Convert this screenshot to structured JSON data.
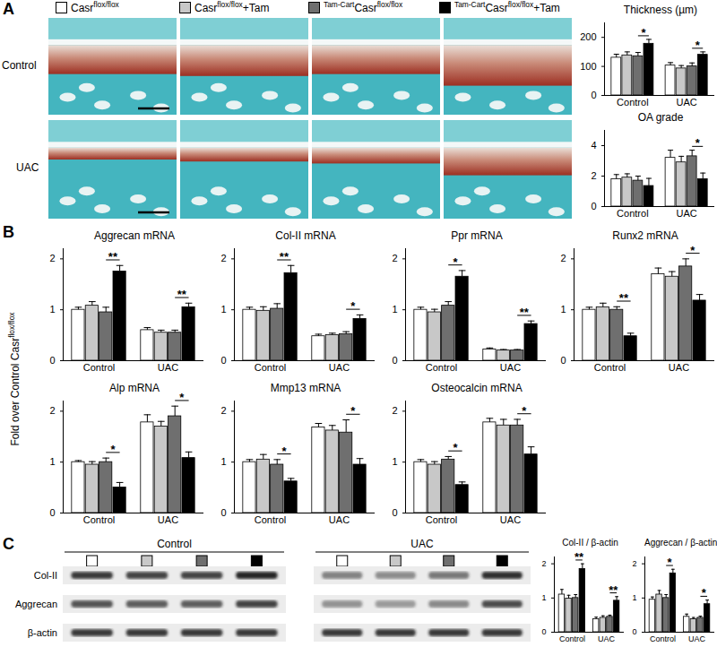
{
  "panel_labels": [
    "A",
    "B",
    "C"
  ],
  "legend": [
    {
      "color": "#ffffff",
      "parts": [
        {
          "text": "Casr"
        },
        {
          "text": "flox/flox",
          "sup": true
        }
      ]
    },
    {
      "color": "#c8c8c8",
      "parts": [
        {
          "text": "Casr"
        },
        {
          "text": "flox/flox",
          "sup": true
        },
        {
          "text": "+Tam"
        }
      ]
    },
    {
      "color": "#6f6f6f",
      "parts": [
        {
          "text": "Tam-Cart",
          "sup": true
        },
        {
          "text": "Casr"
        },
        {
          "text": "flox/flox",
          "sup": true
        }
      ]
    },
    {
      "color": "#000000",
      "parts": [
        {
          "text": "Tam-Cart",
          "sup": true
        },
        {
          "text": "Casr"
        },
        {
          "text": "flox/flox",
          "sup": true
        },
        {
          "text": "+Tam"
        }
      ]
    }
  ],
  "histology": {
    "rows": [
      "Control",
      "UAC"
    ]
  },
  "panel_b_ylabel": [
    {
      "text": "Fold over Control Casr"
    },
    {
      "text": "flox/flox",
      "sup": true
    }
  ],
  "blots": {
    "groups": [
      "Control",
      "UAC"
    ],
    "rows": [
      "Col-II",
      "Aggrecan",
      "β-actin"
    ]
  },
  "chart_data": [
    {
      "type": "bar",
      "title": "Thickness (µm)",
      "categories": [
        "Control",
        "UAC"
      ],
      "series": [
        {
          "name": "Casrflox/flox",
          "color": "#ffffff",
          "values": [
            130,
            103
          ],
          "errors": [
            12,
            10
          ]
        },
        {
          "name": "Casrflox/flox+Tam",
          "color": "#c8c8c8",
          "values": [
            138,
            93
          ],
          "errors": [
            12,
            10
          ]
        },
        {
          "name": "Tam-CartCasrflox/flox",
          "color": "#6f6f6f",
          "values": [
            135,
            100
          ],
          "errors": [
            13,
            12
          ]
        },
        {
          "name": "Tam-CartCasrflox/flox+Tam",
          "color": "#000000",
          "values": [
            178,
            140
          ],
          "errors": [
            15,
            10
          ]
        }
      ],
      "ylim": [
        0,
        250
      ],
      "yticks": [
        0,
        100,
        200
      ],
      "significance": [
        {
          "category": "Control",
          "label": "*"
        },
        {
          "category": "UAC",
          "label": "*"
        }
      ]
    },
    {
      "type": "bar",
      "title": "OA grade",
      "categories": [
        "Control",
        "UAC"
      ],
      "series": [
        {
          "name": "Casrflox/flox",
          "color": "#ffffff",
          "values": [
            1.8,
            3.2
          ],
          "errors": [
            0.3,
            0.5
          ]
        },
        {
          "name": "Casrflox/flox+Tam",
          "color": "#c8c8c8",
          "values": [
            1.9,
            2.9
          ],
          "errors": [
            0.25,
            0.4
          ]
        },
        {
          "name": "Tam-CartCasrflox/flox",
          "color": "#6f6f6f",
          "values": [
            1.7,
            3.3
          ],
          "errors": [
            0.3,
            0.4
          ]
        },
        {
          "name": "Tam-CartCasrflox/flox+Tam",
          "color": "#000000",
          "values": [
            1.35,
            1.8
          ],
          "errors": [
            0.5,
            0.4
          ]
        }
      ],
      "ylim": [
        0,
        5
      ],
      "yticks": [
        0,
        2,
        4
      ],
      "significance": [
        {
          "category": "UAC",
          "label": "*"
        }
      ]
    },
    {
      "type": "bar",
      "title": "Aggrecan mRNA",
      "categories": [
        "Control",
        "UAC"
      ],
      "series": [
        {
          "name": "Casrflox/flox",
          "color": "#ffffff",
          "values": [
            1.0,
            0.6
          ],
          "errors": [
            0.05,
            0.05
          ]
        },
        {
          "name": "Casrflox/flox+Tam",
          "color": "#c8c8c8",
          "values": [
            1.08,
            0.55
          ],
          "errors": [
            0.08,
            0.05
          ]
        },
        {
          "name": "Tam-CartCasrflox/flox",
          "color": "#6f6f6f",
          "values": [
            0.95,
            0.55
          ],
          "errors": [
            0.1,
            0.05
          ]
        },
        {
          "name": "Tam-CartCasrflox/flox+Tam",
          "color": "#000000",
          "values": [
            1.75,
            1.05
          ],
          "errors": [
            0.12,
            0.08
          ]
        }
      ],
      "ylim": [
        0,
        2.2
      ],
      "yticks": [
        0,
        1,
        2
      ],
      "significance": [
        {
          "category": "Control",
          "label": "**"
        },
        {
          "category": "UAC",
          "label": "**"
        }
      ]
    },
    {
      "type": "bar",
      "title": "Col-II mRNA",
      "categories": [
        "Control",
        "UAC"
      ],
      "series": [
        {
          "name": "Casrflox/flox",
          "color": "#ffffff",
          "values": [
            1.0,
            0.48
          ],
          "errors": [
            0.05,
            0.04
          ]
        },
        {
          "name": "Casrflox/flox+Tam",
          "color": "#c8c8c8",
          "values": [
            0.98,
            0.5
          ],
          "errors": [
            0.08,
            0.04
          ]
        },
        {
          "name": "Tam-CartCasrflox/flox",
          "color": "#6f6f6f",
          "values": [
            1.02,
            0.52
          ],
          "errors": [
            0.1,
            0.05
          ]
        },
        {
          "name": "Tam-CartCasrflox/flox+Tam",
          "color": "#000000",
          "values": [
            1.72,
            0.82
          ],
          "errors": [
            0.15,
            0.08
          ]
        }
      ],
      "ylim": [
        0,
        2.2
      ],
      "yticks": [
        0,
        1,
        2
      ],
      "significance": [
        {
          "category": "Control",
          "label": "**"
        },
        {
          "category": "UAC",
          "label": "*"
        }
      ]
    },
    {
      "type": "bar",
      "title": "Ppr mRNA",
      "categories": [
        "Control",
        "UAC"
      ],
      "series": [
        {
          "name": "Casrflox/flox",
          "color": "#ffffff",
          "values": [
            1.0,
            0.22
          ],
          "errors": [
            0.05,
            0.03
          ]
        },
        {
          "name": "Casrflox/flox+Tam",
          "color": "#c8c8c8",
          "values": [
            0.95,
            0.2
          ],
          "errors": [
            0.06,
            0.02
          ]
        },
        {
          "name": "Tam-CartCasrflox/flox",
          "color": "#6f6f6f",
          "values": [
            1.08,
            0.2
          ],
          "errors": [
            0.08,
            0.02
          ]
        },
        {
          "name": "Tam-CartCasrflox/flox+Tam",
          "color": "#000000",
          "values": [
            1.65,
            0.72
          ],
          "errors": [
            0.12,
            0.06
          ]
        }
      ],
      "ylim": [
        0,
        2.2
      ],
      "yticks": [
        0,
        1,
        2
      ],
      "significance": [
        {
          "category": "Control",
          "label": "*"
        },
        {
          "category": "UAC",
          "label": "**"
        }
      ]
    },
    {
      "type": "bar",
      "title": "Runx2 mRNA",
      "categories": [
        "Control",
        "UAC"
      ],
      "series": [
        {
          "name": "Casrflox/flox",
          "color": "#ffffff",
          "values": [
            1.0,
            1.7
          ],
          "errors": [
            0.05,
            0.12
          ]
        },
        {
          "name": "Casrflox/flox+Tam",
          "color": "#c8c8c8",
          "values": [
            1.05,
            1.65
          ],
          "errors": [
            0.08,
            0.1
          ]
        },
        {
          "name": "Tam-CartCasrflox/flox",
          "color": "#6f6f6f",
          "values": [
            1.0,
            1.85
          ],
          "errors": [
            0.06,
            0.15
          ]
        },
        {
          "name": "Tam-CartCasrflox/flox+Tam",
          "color": "#000000",
          "values": [
            0.48,
            1.18
          ],
          "errors": [
            0.06,
            0.12
          ]
        }
      ],
      "ylim": [
        0,
        2.2
      ],
      "yticks": [
        0,
        1,
        2
      ],
      "significance": [
        {
          "category": "Control",
          "label": "**"
        },
        {
          "category": "UAC",
          "label": "*"
        }
      ]
    },
    {
      "type": "bar",
      "title": "Alp mRNA",
      "categories": [
        "Control",
        "UAC"
      ],
      "series": [
        {
          "name": "Casrflox/flox",
          "color": "#ffffff",
          "values": [
            1.0,
            1.78
          ],
          "errors": [
            0.03,
            0.15
          ]
        },
        {
          "name": "Casrflox/flox+Tam",
          "color": "#c8c8c8",
          "values": [
            0.95,
            1.7
          ],
          "errors": [
            0.06,
            0.1
          ]
        },
        {
          "name": "Tam-CartCasrflox/flox",
          "color": "#6f6f6f",
          "values": [
            1.0,
            1.9
          ],
          "errors": [
            0.08,
            0.2
          ]
        },
        {
          "name": "Tam-CartCasrflox/flox+Tam",
          "color": "#000000",
          "values": [
            0.5,
            1.08
          ],
          "errors": [
            0.1,
            0.12
          ]
        }
      ],
      "ylim": [
        0,
        2.2
      ],
      "yticks": [
        0,
        1,
        2
      ],
      "significance": [
        {
          "category": "Control",
          "label": "*"
        },
        {
          "category": "UAC",
          "label": "*"
        }
      ]
    },
    {
      "type": "bar",
      "title": "Mmp13 mRNA",
      "categories": [
        "Control",
        "UAC"
      ],
      "series": [
        {
          "name": "Casrflox/flox",
          "color": "#ffffff",
          "values": [
            1.0,
            1.68
          ],
          "errors": [
            0.05,
            0.08
          ]
        },
        {
          "name": "Casrflox/flox+Tam",
          "color": "#c8c8c8",
          "values": [
            1.05,
            1.62
          ],
          "errors": [
            0.1,
            0.1
          ]
        },
        {
          "name": "Tam-CartCasrflox/flox",
          "color": "#6f6f6f",
          "values": [
            0.95,
            1.58
          ],
          "errors": [
            0.1,
            0.25
          ]
        },
        {
          "name": "Tam-CartCasrflox/flox+Tam",
          "color": "#000000",
          "values": [
            0.62,
            0.95
          ],
          "errors": [
            0.06,
            0.12
          ]
        }
      ],
      "ylim": [
        0,
        2.2
      ],
      "yticks": [
        0,
        1,
        2
      ],
      "significance": [
        {
          "category": "Control",
          "label": "*"
        },
        {
          "category": "UAC",
          "label": "*"
        }
      ]
    },
    {
      "type": "bar",
      "title": "Osteocalcin mRNA",
      "categories": [
        "Control",
        "UAC"
      ],
      "series": [
        {
          "name": "Casrflox/flox",
          "color": "#ffffff",
          "values": [
            1.0,
            1.78
          ],
          "errors": [
            0.05,
            0.08
          ]
        },
        {
          "name": "Casrflox/flox+Tam",
          "color": "#c8c8c8",
          "values": [
            0.95,
            1.72
          ],
          "errors": [
            0.06,
            0.12
          ]
        },
        {
          "name": "Tam-CartCasrflox/flox",
          "color": "#6f6f6f",
          "values": [
            1.05,
            1.72
          ],
          "errors": [
            0.06,
            0.12
          ]
        },
        {
          "name": "Tam-CartCasrflox/flox+Tam",
          "color": "#000000",
          "values": [
            0.55,
            1.15
          ],
          "errors": [
            0.06,
            0.15
          ]
        }
      ],
      "ylim": [
        0,
        2.2
      ],
      "yticks": [
        0,
        1,
        2
      ],
      "significance": [
        {
          "category": "Control",
          "label": "*"
        },
        {
          "category": "UAC",
          "label": "*"
        }
      ]
    },
    {
      "type": "bar",
      "title": "Col-II / β-actin",
      "categories": [
        "Control",
        "UAC"
      ],
      "series": [
        {
          "name": "Casrflox/flox",
          "color": "#ffffff",
          "values": [
            1.1,
            0.38
          ],
          "errors": [
            0.15,
            0.06
          ]
        },
        {
          "name": "Casrflox/flox+Tam",
          "color": "#c8c8c8",
          "values": [
            0.98,
            0.42
          ],
          "errors": [
            0.1,
            0.06
          ]
        },
        {
          "name": "Tam-CartCasrflox/flox",
          "color": "#6f6f6f",
          "values": [
            1.0,
            0.45
          ],
          "errors": [
            0.1,
            0.05
          ]
        },
        {
          "name": "Tam-CartCasrflox/flox+Tam",
          "color": "#000000",
          "values": [
            1.85,
            0.92
          ],
          "errors": [
            0.15,
            0.12
          ]
        }
      ],
      "ylim": [
        0,
        2.2
      ],
      "yticks": [
        0,
        1,
        2
      ],
      "significance": [
        {
          "category": "Control",
          "label": "**"
        },
        {
          "category": "UAC",
          "label": "**"
        }
      ]
    },
    {
      "type": "bar",
      "title": "Aggrecan / β-actin",
      "categories": [
        "Control",
        "UAC"
      ],
      "series": [
        {
          "name": "Casrflox/flox",
          "color": "#ffffff",
          "values": [
            0.95,
            0.45
          ],
          "errors": [
            0.08,
            0.08
          ]
        },
        {
          "name": "Casrflox/flox+Tam",
          "color": "#c8c8c8",
          "values": [
            1.1,
            0.38
          ],
          "errors": [
            0.12,
            0.05
          ]
        },
        {
          "name": "Tam-CartCasrflox/flox",
          "color": "#6f6f6f",
          "values": [
            1.0,
            0.42
          ],
          "errors": [
            0.1,
            0.05
          ]
        },
        {
          "name": "Tam-CartCasrflox/flox+Tam",
          "color": "#000000",
          "values": [
            1.72,
            0.82
          ],
          "errors": [
            0.12,
            0.12
          ]
        }
      ],
      "ylim": [
        0,
        2.2
      ],
      "yticks": [
        0,
        1,
        2
      ],
      "significance": [
        {
          "category": "Control",
          "label": "*"
        },
        {
          "category": "UAC",
          "label": "*"
        }
      ]
    }
  ]
}
